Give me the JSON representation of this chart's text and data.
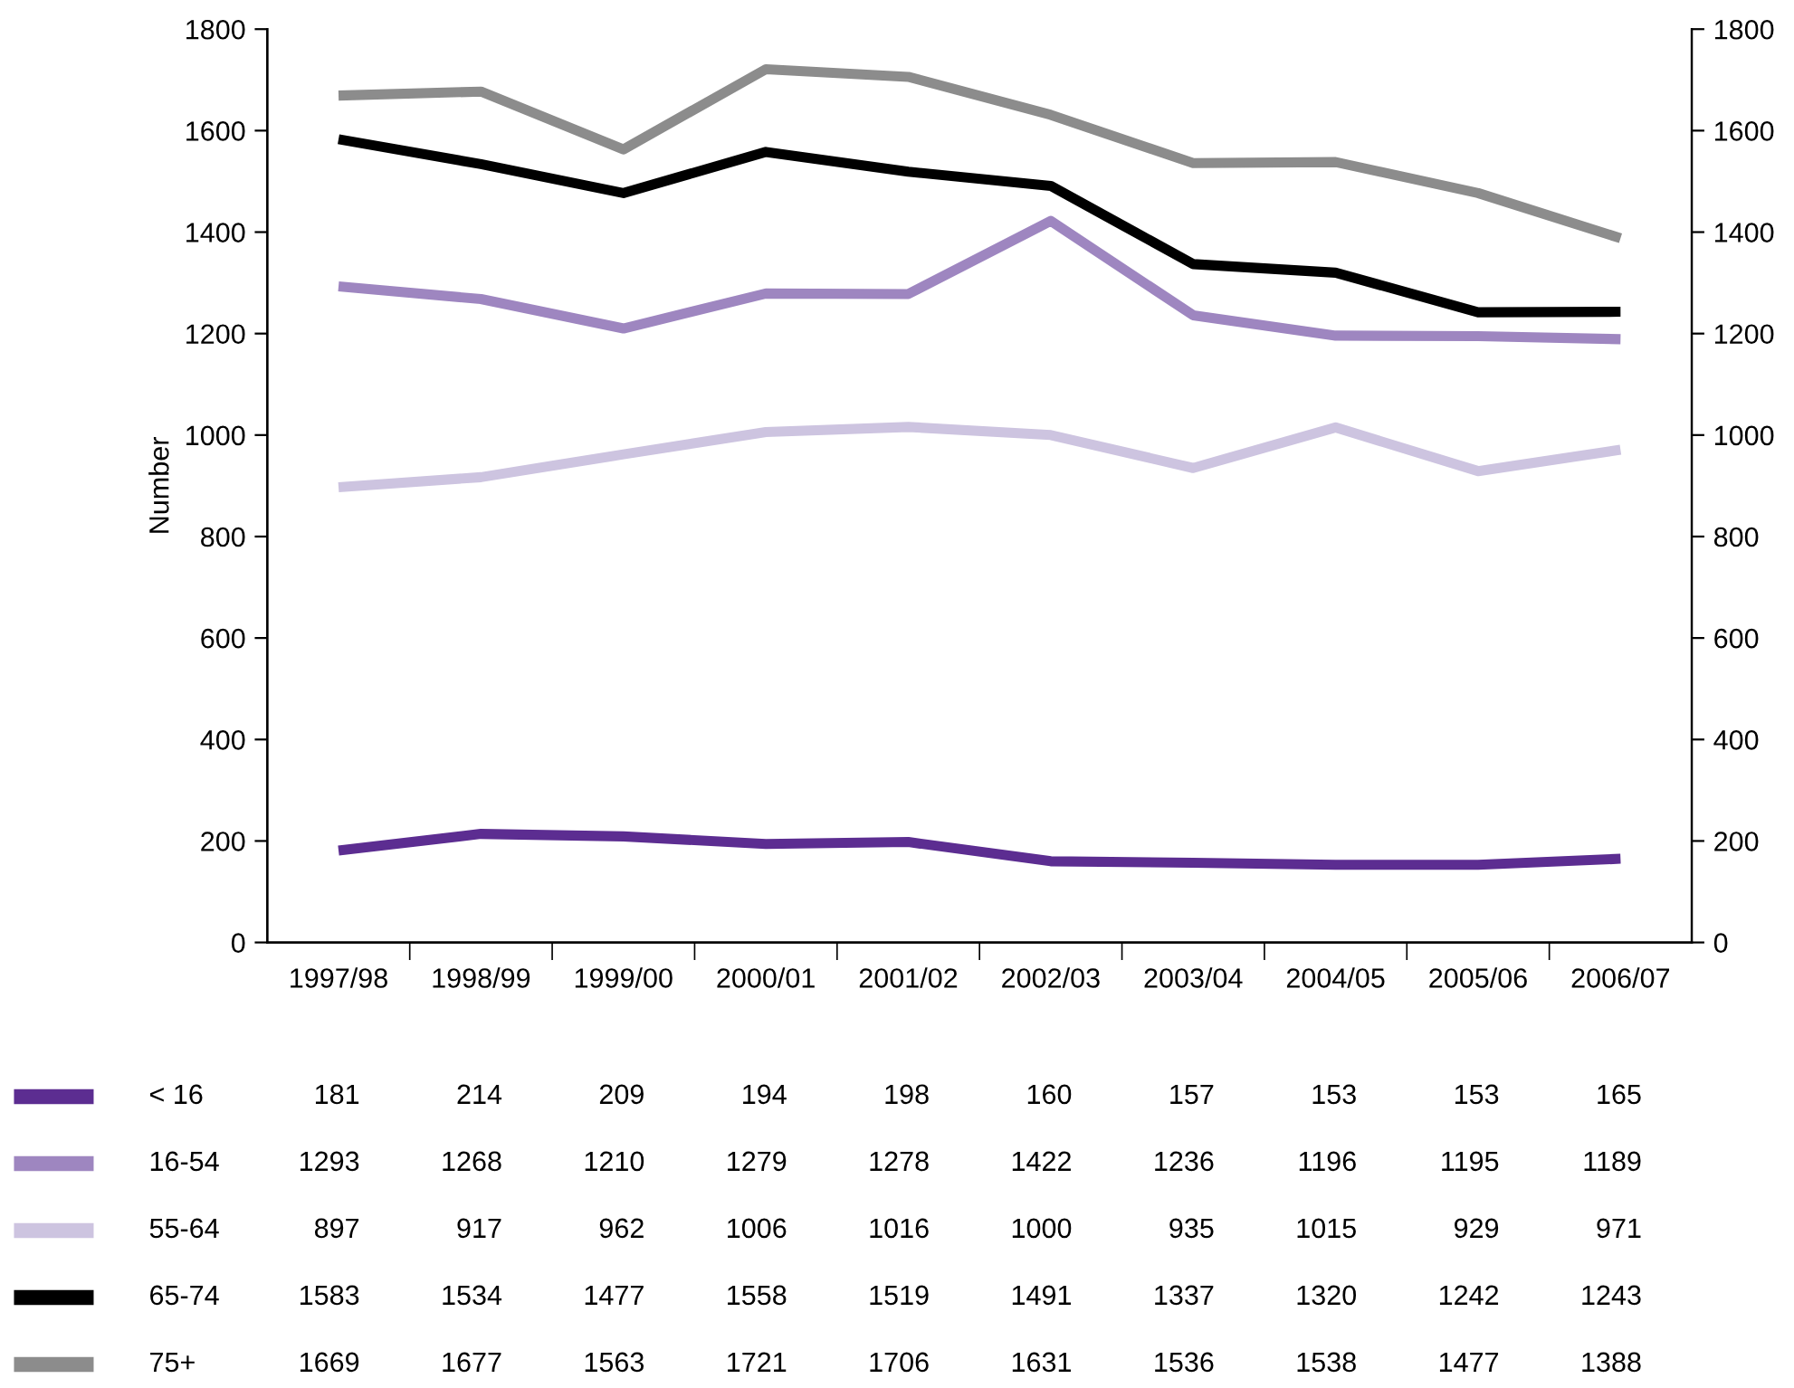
{
  "chart_data": {
    "type": "line",
    "ylabel": "Number",
    "categories": [
      "1997/98",
      "1998/99",
      "1999/00",
      "2000/01",
      "2001/02",
      "2002/03",
      "2003/04",
      "2004/05",
      "2005/06",
      "2006/07"
    ],
    "series": [
      {
        "name": "< 16",
        "color": "#5c2d91",
        "values": [
          181,
          214,
          209,
          194,
          198,
          160,
          157,
          153,
          153,
          165
        ]
      },
      {
        "name": "16-54",
        "color": "#9e86c0",
        "values": [
          1293,
          1268,
          1210,
          1279,
          1278,
          1422,
          1236,
          1196,
          1195,
          1189
        ]
      },
      {
        "name": "55-64",
        "color": "#cdc4e0",
        "values": [
          897,
          917,
          962,
          1006,
          1016,
          1000,
          935,
          1015,
          929,
          971
        ]
      },
      {
        "name": "65-74",
        "color": "#000000",
        "values": [
          1583,
          1534,
          1477,
          1558,
          1519,
          1491,
          1337,
          1320,
          1242,
          1243
        ]
      },
      {
        "name": "75+",
        "color": "#8c8c8c",
        "values": [
          1669,
          1677,
          1563,
          1721,
          1706,
          1631,
          1536,
          1538,
          1477,
          1388
        ]
      }
    ],
    "ylim": [
      0,
      1800
    ],
    "yticks": [
      0,
      200,
      400,
      600,
      800,
      1000,
      1200,
      1400,
      1600,
      1800
    ],
    "y2lim": [
      0,
      1800
    ],
    "y2ticks": [
      0,
      200,
      400,
      600,
      800,
      1000,
      1200,
      1400,
      1600,
      1800
    ],
    "grid": false,
    "legend": "bottom",
    "data_labels": true,
    "marker": "none",
    "line_style": "solid"
  }
}
